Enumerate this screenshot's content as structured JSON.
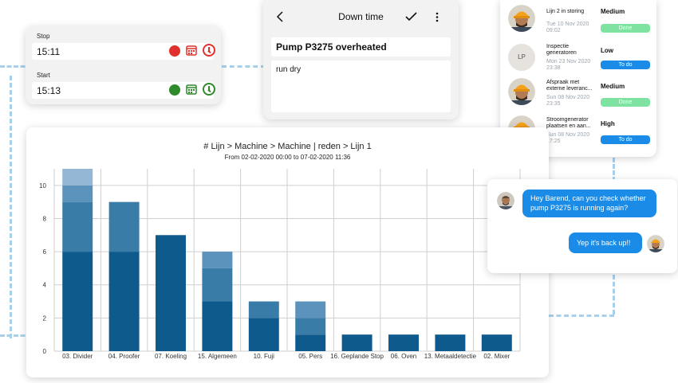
{
  "time_card": {
    "stop_label": "Stop",
    "stop_time": "15:11",
    "start_label": "Start",
    "start_time": "15:13",
    "colors": {
      "stop": "#e0312c",
      "start": "#2f8a2b"
    }
  },
  "downtime": {
    "title": "Down time",
    "back_icon": "chevron-left-icon",
    "confirm_icon": "checkmark-icon",
    "more_icon": "more-vertical-icon",
    "issue_title": "Pump P3275 overheated",
    "issue_note": "run dry"
  },
  "tasks": [
    {
      "name": "Lijn 2 in storing",
      "date": "Tue 10 Nov 2020 09:02",
      "priority": "Medium",
      "status": "Done",
      "avatar": "worker",
      "status_color": "#7ee3a0"
    },
    {
      "name": "Inspectie generatoren",
      "date": "Mon 23 Nov 2020 23:38",
      "priority": "Low",
      "status": "To do",
      "avatar": "LP",
      "status_color": "#1a8be6"
    },
    {
      "name": "Afspraak met externe leveranc...",
      "date": "Sun 08 Nov 2020 23:35",
      "priority": "Medium",
      "status": "Done",
      "avatar": "worker",
      "status_color": "#7ee3a0"
    },
    {
      "name": "Stroomgenerator plaatsen en aan...",
      "date": "Sun 08 Nov 2020 17:25",
      "priority": "High",
      "status": "To do",
      "avatar": "worker",
      "status_color": "#1a8be6"
    }
  ],
  "chart": {
    "title": "# Lijn > Machine > Machine | reden > Lijn 1",
    "subtitle": "From 02-02-2020 00:00 to 07-02-2020 11:36"
  },
  "chart_data": {
    "type": "bar",
    "stacked": true,
    "categories": [
      "03. Divider",
      "04. Proofer",
      "07. Koeling",
      "15. Algemeen",
      "10. Fuji",
      "05. Pers",
      "16. Geplande Stop",
      "06. Oven",
      "13. Metaaldetectie",
      "02. Mixer"
    ],
    "series": [
      {
        "values": [
          6,
          6,
          7,
          3,
          2,
          1,
          1,
          1,
          1,
          1
        ],
        "color": "#0f5a8c"
      },
      {
        "values": [
          3,
          3,
          0,
          2,
          1,
          1,
          0,
          0,
          0,
          0
        ],
        "color": "#3a7ca8"
      },
      {
        "values": [
          1,
          0,
          0,
          1,
          0,
          1,
          0,
          0,
          0,
          0
        ],
        "color": "#5b93bd"
      },
      {
        "values": [
          1,
          0,
          0,
          0,
          0,
          0,
          0,
          0,
          0,
          0
        ],
        "color": "#93b7d4"
      }
    ],
    "yticks": [
      0,
      2,
      4,
      6,
      8,
      10
    ],
    "ylim": [
      0,
      11
    ],
    "grid": true
  },
  "chat": {
    "message_in": "Hey Barend, can you check whether pump P3275 is running again?",
    "message_out": "Yep it's back up!!",
    "bubble_color": "#1a8be6"
  }
}
